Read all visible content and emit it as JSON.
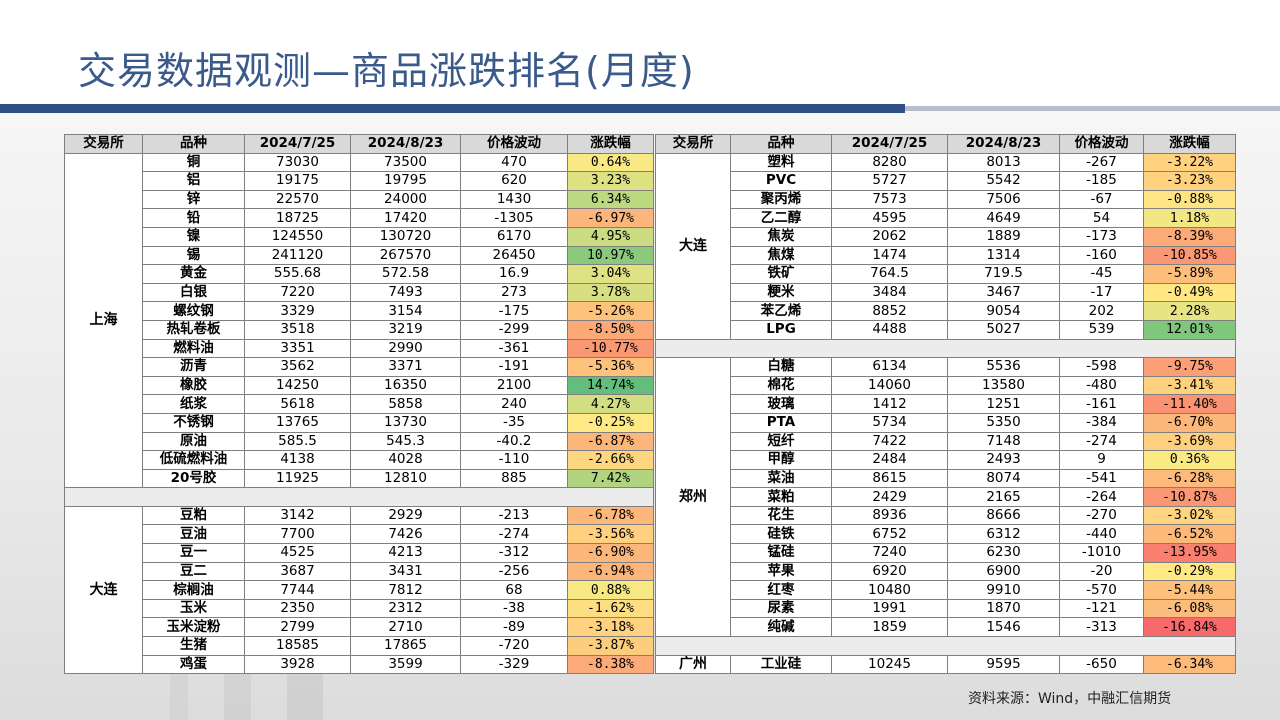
{
  "title": "交易数据观测—商品涨跌排名(月度)",
  "source": "资料来源：Wind，中融汇信期货",
  "headers": [
    "交易所",
    "品种",
    "2024/7/25",
    "2024/8/23",
    "价格波动",
    "涨跌幅"
  ],
  "colors": {
    "title": "#3a5a8c",
    "stripe": "#2f4f86",
    "gain_max": "#63be7b",
    "mid": "#ffeb84",
    "loss_max": "#f8696b"
  },
  "left_groups": [
    {
      "exchange": "上海",
      "rows": [
        {
          "name": "铜",
          "d1": "73030",
          "d2": "73500",
          "diff": "470",
          "pct": "0.64%",
          "v": 0.64
        },
        {
          "name": "铝",
          "d1": "19175",
          "d2": "19795",
          "diff": "620",
          "pct": "3.23%",
          "v": 3.23
        },
        {
          "name": "锌",
          "d1": "22570",
          "d2": "24000",
          "diff": "1430",
          "pct": "6.34%",
          "v": 6.34
        },
        {
          "name": "铅",
          "d1": "18725",
          "d2": "17420",
          "diff": "-1305",
          "pct": "-6.97%",
          "v": -6.97
        },
        {
          "name": "镍",
          "d1": "124550",
          "d2": "130720",
          "diff": "6170",
          "pct": "4.95%",
          "v": 4.95
        },
        {
          "name": "锡",
          "d1": "241120",
          "d2": "267570",
          "diff": "26450",
          "pct": "10.97%",
          "v": 10.97
        },
        {
          "name": "黄金",
          "d1": "555.68",
          "d2": "572.58",
          "diff": "16.9",
          "pct": "3.04%",
          "v": 3.04
        },
        {
          "name": "白银",
          "d1": "7220",
          "d2": "7493",
          "diff": "273",
          "pct": "3.78%",
          "v": 3.78
        },
        {
          "name": "螺纹钢",
          "d1": "3329",
          "d2": "3154",
          "diff": "-175",
          "pct": "-5.26%",
          "v": -5.26
        },
        {
          "name": "热轧卷板",
          "d1": "3518",
          "d2": "3219",
          "diff": "-299",
          "pct": "-8.50%",
          "v": -8.5
        },
        {
          "name": "燃料油",
          "d1": "3351",
          "d2": "2990",
          "diff": "-361",
          "pct": "-10.77%",
          "v": -10.77
        },
        {
          "name": "沥青",
          "d1": "3562",
          "d2": "3371",
          "diff": "-191",
          "pct": "-5.36%",
          "v": -5.36
        },
        {
          "name": "橡胶",
          "d1": "14250",
          "d2": "16350",
          "diff": "2100",
          "pct": "14.74%",
          "v": 14.74
        },
        {
          "name": "纸浆",
          "d1": "5618",
          "d2": "5858",
          "diff": "240",
          "pct": "4.27%",
          "v": 4.27
        },
        {
          "name": "不锈钢",
          "d1": "13765",
          "d2": "13730",
          "diff": "-35",
          "pct": "-0.25%",
          "v": -0.25
        },
        {
          "name": "原油",
          "d1": "585.5",
          "d2": "545.3",
          "diff": "-40.2",
          "pct": "-6.87%",
          "v": -6.87
        },
        {
          "name": "低硫燃料油",
          "d1": "4138",
          "d2": "4028",
          "diff": "-110",
          "pct": "-2.66%",
          "v": -2.66
        },
        {
          "name": "20号胶",
          "d1": "11925",
          "d2": "12810",
          "diff": "885",
          "pct": "7.42%",
          "v": 7.42
        }
      ]
    },
    {
      "exchange": "大连",
      "rows": [
        {
          "name": "豆粕",
          "d1": "3142",
          "d2": "2929",
          "diff": "-213",
          "pct": "-6.78%",
          "v": -6.78
        },
        {
          "name": "豆油",
          "d1": "7700",
          "d2": "7426",
          "diff": "-274",
          "pct": "-3.56%",
          "v": -3.56
        },
        {
          "name": "豆一",
          "d1": "4525",
          "d2": "4213",
          "diff": "-312",
          "pct": "-6.90%",
          "v": -6.9
        },
        {
          "name": "豆二",
          "d1": "3687",
          "d2": "3431",
          "diff": "-256",
          "pct": "-6.94%",
          "v": -6.94
        },
        {
          "name": "棕榈油",
          "d1": "7744",
          "d2": "7812",
          "diff": "68",
          "pct": "0.88%",
          "v": 0.88
        },
        {
          "name": "玉米",
          "d1": "2350",
          "d2": "2312",
          "diff": "-38",
          "pct": "-1.62%",
          "v": -1.62
        },
        {
          "name": "玉米淀粉",
          "d1": "2799",
          "d2": "2710",
          "diff": "-89",
          "pct": "-3.18%",
          "v": -3.18
        },
        {
          "name": "生猪",
          "d1": "18585",
          "d2": "17865",
          "diff": "-720",
          "pct": "-3.87%",
          "v": -3.87
        },
        {
          "name": "鸡蛋",
          "d1": "3928",
          "d2": "3599",
          "diff": "-329",
          "pct": "-8.38%",
          "v": -8.38
        }
      ]
    }
  ],
  "right_groups": [
    {
      "exchange": "大连",
      "rows": [
        {
          "name": "塑料",
          "d1": "8280",
          "d2": "8013",
          "diff": "-267",
          "pct": "-3.22%",
          "v": -3.22
        },
        {
          "name": "PVC",
          "d1": "5727",
          "d2": "5542",
          "diff": "-185",
          "pct": "-3.23%",
          "v": -3.23
        },
        {
          "name": "聚丙烯",
          "d1": "7573",
          "d2": "7506",
          "diff": "-67",
          "pct": "-0.88%",
          "v": -0.88
        },
        {
          "name": "乙二醇",
          "d1": "4595",
          "d2": "4649",
          "diff": "54",
          "pct": "1.18%",
          "v": 1.18
        },
        {
          "name": "焦炭",
          "d1": "2062",
          "d2": "1889",
          "diff": "-173",
          "pct": "-8.39%",
          "v": -8.39
        },
        {
          "name": "焦煤",
          "d1": "1474",
          "d2": "1314",
          "diff": "-160",
          "pct": "-10.85%",
          "v": -10.85
        },
        {
          "name": "铁矿",
          "d1": "764.5",
          "d2": "719.5",
          "diff": "-45",
          "pct": "-5.89%",
          "v": -5.89
        },
        {
          "name": "粳米",
          "d1": "3484",
          "d2": "3467",
          "diff": "-17",
          "pct": "-0.49%",
          "v": -0.49
        },
        {
          "name": "苯乙烯",
          "d1": "8852",
          "d2": "9054",
          "diff": "202",
          "pct": "2.28%",
          "v": 2.28
        },
        {
          "name": "LPG",
          "d1": "4488",
          "d2": "5027",
          "diff": "539",
          "pct": "12.01%",
          "v": 12.01
        }
      ]
    },
    {
      "exchange": "郑州",
      "rows": [
        {
          "name": "白糖",
          "d1": "6134",
          "d2": "5536",
          "diff": "-598",
          "pct": "-9.75%",
          "v": -9.75
        },
        {
          "name": "棉花",
          "d1": "14060",
          "d2": "13580",
          "diff": "-480",
          "pct": "-3.41%",
          "v": -3.41
        },
        {
          "name": "玻璃",
          "d1": "1412",
          "d2": "1251",
          "diff": "-161",
          "pct": "-11.40%",
          "v": -11.4
        },
        {
          "name": "PTA",
          "d1": "5734",
          "d2": "5350",
          "diff": "-384",
          "pct": "-6.70%",
          "v": -6.7
        },
        {
          "name": "短纤",
          "d1": "7422",
          "d2": "7148",
          "diff": "-274",
          "pct": "-3.69%",
          "v": -3.69
        },
        {
          "name": "甲醇",
          "d1": "2484",
          "d2": "2493",
          "diff": "9",
          "pct": "0.36%",
          "v": 0.36
        },
        {
          "name": "菜油",
          "d1": "8615",
          "d2": "8074",
          "diff": "-541",
          "pct": "-6.28%",
          "v": -6.28
        },
        {
          "name": "菜粕",
          "d1": "2429",
          "d2": "2165",
          "diff": "-264",
          "pct": "-10.87%",
          "v": -10.87
        },
        {
          "name": "花生",
          "d1": "8936",
          "d2": "8666",
          "diff": "-270",
          "pct": "-3.02%",
          "v": -3.02
        },
        {
          "name": "硅铁",
          "d1": "6752",
          "d2": "6312",
          "diff": "-440",
          "pct": "-6.52%",
          "v": -6.52
        },
        {
          "name": "锰硅",
          "d1": "7240",
          "d2": "6230",
          "diff": "-1010",
          "pct": "-13.95%",
          "v": -13.95
        },
        {
          "name": "苹果",
          "d1": "6920",
          "d2": "6900",
          "diff": "-20",
          "pct": "-0.29%",
          "v": -0.29
        },
        {
          "name": "红枣",
          "d1": "10480",
          "d2": "9910",
          "diff": "-570",
          "pct": "-5.44%",
          "v": -5.44
        },
        {
          "name": "尿素",
          "d1": "1991",
          "d2": "1870",
          "diff": "-121",
          "pct": "-6.08%",
          "v": -6.08
        },
        {
          "name": "纯碱",
          "d1": "1859",
          "d2": "1546",
          "diff": "-313",
          "pct": "-16.84%",
          "v": -16.84
        }
      ]
    },
    {
      "exchange": "广州",
      "rows": [
        {
          "name": "工业硅",
          "d1": "10245",
          "d2": "9595",
          "diff": "-650",
          "pct": "-6.34%",
          "v": -6.34
        }
      ]
    }
  ]
}
